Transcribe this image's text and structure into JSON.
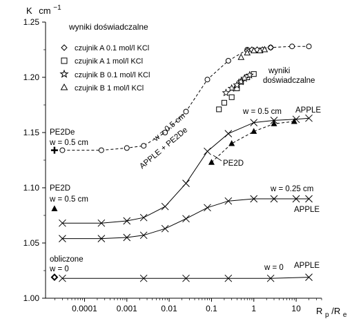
{
  "chart_data": {
    "type": "line",
    "ylabel": "K  cm⁻¹",
    "ylabel_main": "K",
    "ylabel_unit": "cm",
    "ylabel_exp": "−1",
    "xlabel": "Rₚ/Rₑ",
    "xlabel_r1": "R",
    "xlabel_sub1": "p",
    "xlabel_sep": "/R",
    "xlabel_sub2": "e",
    "x_scale": "log",
    "xlim": [
      1.2e-05,
      40
    ],
    "ylim": [
      1.0,
      1.25
    ],
    "x_ticks": [
      0.0001,
      0.001,
      0.01,
      0.1,
      1,
      10
    ],
    "x_tick_labels": [
      "0.0001",
      "0.001",
      "0.01",
      "0.1",
      "1",
      "10"
    ],
    "y_ticks": [
      1.0,
      1.05,
      1.1,
      1.15,
      1.2,
      1.25
    ],
    "y_tick_labels": [
      "1.00",
      "1.05",
      "1.10",
      "1.15",
      "1.20",
      "1.25"
    ],
    "grid": false,
    "legend": {
      "position": "top-left",
      "title": "wyniki doświadczalne",
      "entries": [
        {
          "marker": "diamond",
          "label": "czujnik A  0.1 mol/l KCl"
        },
        {
          "marker": "square",
          "label": "czujnik A  1 mol/l KCl"
        },
        {
          "marker": "star",
          "label": "czujnik B  0.1 mol/l KCl"
        },
        {
          "marker": "triangle",
          "label": "czujnik B  1 mol/l KCl"
        }
      ]
    },
    "series": [
      {
        "name": "APPLE + PE2De",
        "line": "dashed",
        "marker": "circle",
        "x": [
          3e-05,
          0.00025,
          0.001,
          0.0025,
          0.008,
          0.025,
          0.08,
          0.25,
          0.7,
          2.5,
          8,
          20
        ],
        "y": [
          1.134,
          1.134,
          1.136,
          1.138,
          1.15,
          1.169,
          1.198,
          1.215,
          1.225,
          1.227,
          1.228,
          1.228
        ]
      },
      {
        "name": "w = 0.5 cm  APPLE",
        "line": "solid",
        "marker": "x",
        "x": [
          3e-05,
          0.00025,
          0.001,
          0.0025,
          0.008,
          0.025,
          0.08,
          0.25,
          1,
          3,
          10,
          20
        ],
        "y": [
          1.068,
          1.068,
          1.07,
          1.073,
          1.083,
          1.104,
          1.133,
          1.149,
          1.159,
          1.161,
          1.162,
          1.163
        ]
      },
      {
        "name": "w = 0.25 cm  APPLE",
        "line": "solid",
        "marker": "x",
        "x": [
          3e-05,
          0.00025,
          0.001,
          0.0025,
          0.008,
          0.025,
          0.08,
          0.25,
          1,
          3,
          10,
          20
        ],
        "y": [
          1.054,
          1.054,
          1.055,
          1.057,
          1.063,
          1.072,
          1.082,
          1.088,
          1.09,
          1.09,
          1.09,
          1.09
        ]
      },
      {
        "name": "w = 0  APPLE",
        "line": "solid",
        "marker": "x",
        "x": [
          3e-05,
          0.0025,
          0.025,
          0.25,
          2.5,
          20
        ],
        "y": [
          1.018,
          1.018,
          1.018,
          1.018,
          1.018,
          1.019
        ]
      },
      {
        "name": "PE2D",
        "line": "dashed",
        "marker": "triangle-filled",
        "x": [
          0.1,
          0.3,
          1,
          3,
          9
        ],
        "y": [
          1.123,
          1.14,
          1.151,
          1.158,
          1.16
        ]
      },
      {
        "name": "czujnik A  0.1 mol/l KCl",
        "line": "none",
        "marker": "diamond",
        "x": [
          0.7,
          0.9,
          1.2,
          1.6,
          2.5
        ],
        "y": [
          1.224,
          1.225,
          1.225,
          1.225,
          1.227
        ]
      },
      {
        "name": "czujnik A  1 mol/l KCl",
        "line": "none",
        "marker": "square",
        "x": [
          0.15,
          0.2,
          0.3,
          0.4,
          0.5,
          0.7,
          1.0
        ],
        "y": [
          1.171,
          1.177,
          1.182,
          1.19,
          1.196,
          1.2,
          1.203
        ]
      },
      {
        "name": "czujnik B  0.1 mol/l KCl",
        "line": "none",
        "marker": "star",
        "x": [
          0.22,
          0.3,
          0.4,
          0.5,
          0.6,
          0.8
        ],
        "y": [
          1.186,
          1.19,
          1.193,
          1.196,
          1.199,
          1.202
        ]
      },
      {
        "name": "czujnik B  1 mol/l KCl",
        "line": "none",
        "marker": "triangle",
        "x": [
          0.5,
          0.7,
          1.0,
          1.4,
          1.8
        ],
        "y": [
          1.218,
          1.222,
          1.224,
          1.224,
          1.225
        ]
      },
      {
        "name": "PE2De  w = 0.5 cm",
        "line": "none",
        "marker": "plus-bold",
        "x": [
          1.95e-05
        ],
        "y": [
          1.134
        ]
      },
      {
        "name": "PE2D  w = 0.5 cm",
        "line": "none",
        "marker": "triangle-filled",
        "x": [
          1.95e-05
        ],
        "y": [
          1.081
        ]
      },
      {
        "name": "obliczone  w = 0",
        "line": "none",
        "marker": "diamond-bold",
        "x": [
          1.95e-05
        ],
        "y": [
          1.019
        ]
      }
    ],
    "annotations": {
      "pe2de_title": "PE2De",
      "pe2de_w": "w = 0.5 cm",
      "pe2d_left_title": "PE2D",
      "pe2d_left_w": "w = 0.5 cm",
      "obliczone": "obliczone",
      "obliczone_w": "w = 0",
      "dashed_w": "w = 0.5 cm",
      "dashed_name": "APPLE + PE2De",
      "pe2d_curve": "PE2D",
      "top_w": "w = 0.5 cm",
      "top_apple": "APPLE",
      "mid_w": "w = 0.25 cm",
      "mid_apple": "APPLE",
      "bottom_w": "w = 0",
      "bottom_apple": "APPLE",
      "wyniki_line1": "wyniki",
      "wyniki_line2": "doświadczalne"
    }
  }
}
